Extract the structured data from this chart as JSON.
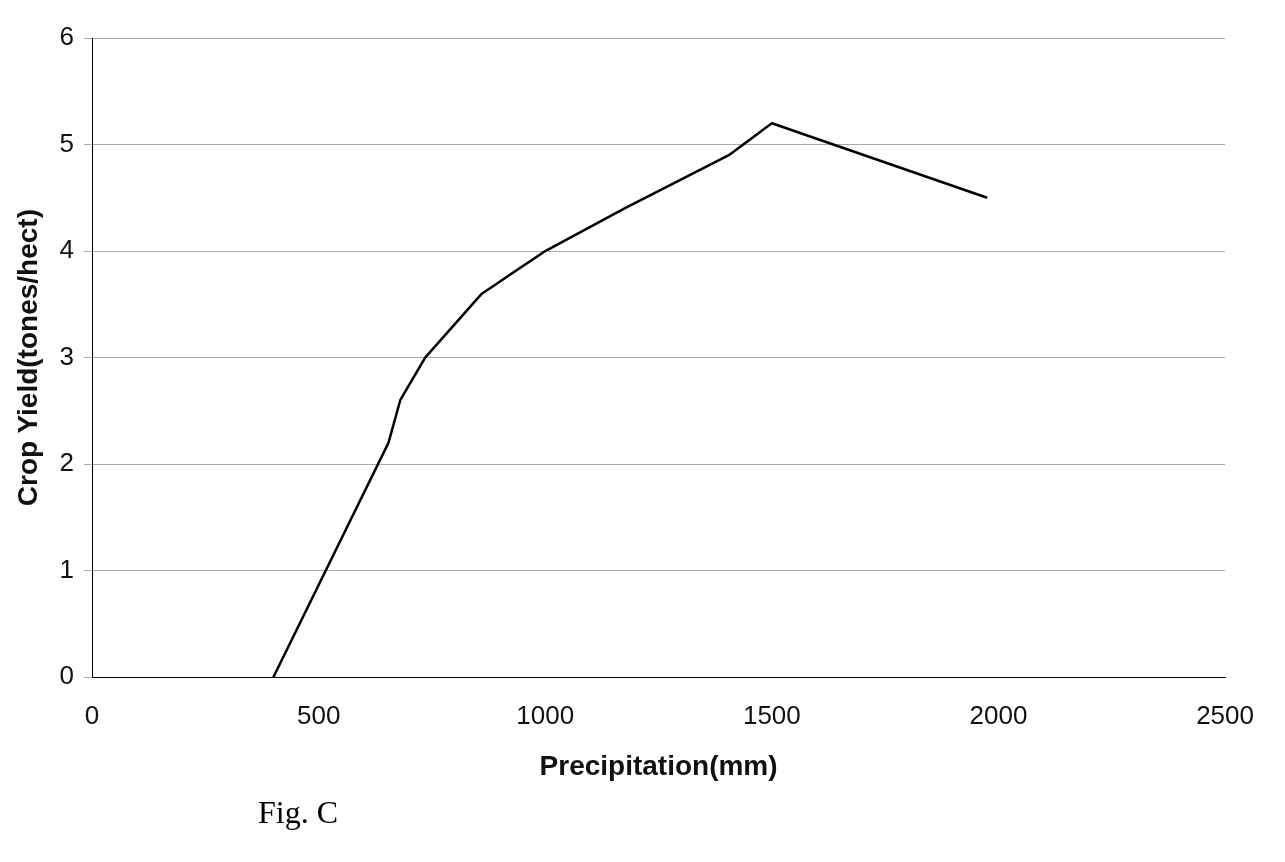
{
  "chart_data": {
    "type": "line",
    "xlabel": "Precipitation(mm)",
    "ylabel": "Crop Yield(tones/hect)",
    "x": [
      400,
      654,
      680,
      735,
      860,
      1000,
      1175,
      1405,
      1500,
      1975
    ],
    "series": [
      {
        "color": "#000000",
        "values": [
          0,
          2.2,
          2.6,
          3.0,
          3.6,
          4.0,
          4.4,
          4.9,
          5.2,
          4.5
        ]
      }
    ],
    "xlim": [
      0,
      2500
    ],
    "xticks": [
      0,
      500,
      1000,
      1500,
      2000,
      2500
    ],
    "ylim": [
      0,
      6
    ],
    "yticks": [
      0,
      1,
      2,
      3,
      4,
      5,
      6
    ],
    "grid": "y",
    "legend": false,
    "marker": "none",
    "line_style": "solid",
    "annotations": [
      "Fig. C"
    ]
  }
}
